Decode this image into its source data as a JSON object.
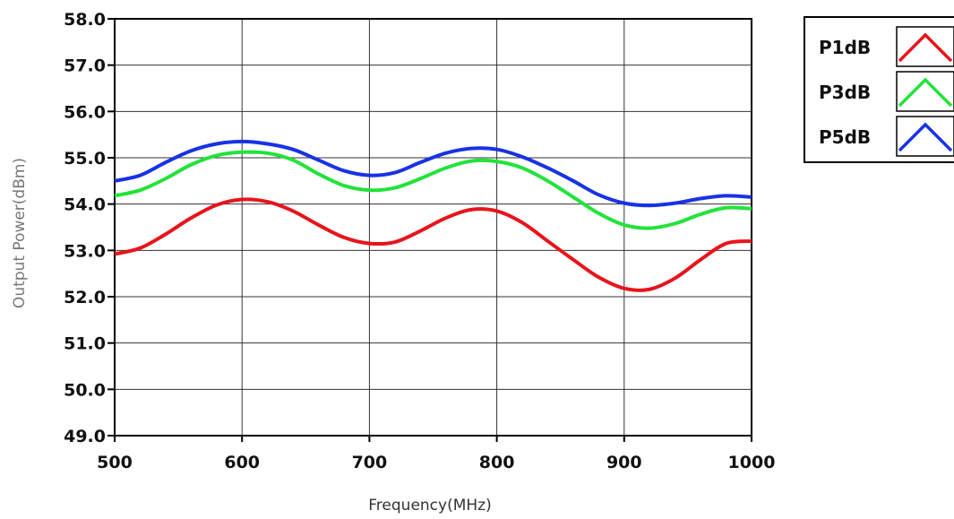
{
  "chart_data": {
    "type": "line",
    "title": "",
    "xlabel": "Frequency(MHz)",
    "ylabel": "Output Power(dBm)",
    "xlim": [
      500,
      1000
    ],
    "ylim": [
      49.0,
      58.0
    ],
    "x_ticks": [
      "500",
      "600",
      "700",
      "800",
      "900",
      "1000"
    ],
    "y_ticks": [
      "49.0",
      "50.0",
      "51.0",
      "52.0",
      "53.0",
      "54.0",
      "55.0",
      "56.0",
      "57.0",
      "58.0"
    ],
    "grid": true,
    "legend_position": "right",
    "series": [
      {
        "name": "P1dB",
        "color": "#e8141b",
        "x": [
          500,
          520,
          540,
          560,
          580,
          600,
          620,
          640,
          660,
          680,
          700,
          720,
          740,
          760,
          780,
          800,
          820,
          840,
          860,
          880,
          900,
          920,
          940,
          960,
          980,
          1000
        ],
        "y": [
          52.92,
          53.05,
          53.35,
          53.7,
          53.98,
          54.1,
          54.05,
          53.85,
          53.55,
          53.28,
          53.15,
          53.18,
          53.42,
          53.7,
          53.88,
          53.85,
          53.6,
          53.2,
          52.8,
          52.42,
          52.18,
          52.16,
          52.4,
          52.8,
          53.15,
          53.2
        ]
      },
      {
        "name": "P3dB",
        "color": "#22e33a",
        "x": [
          500,
          520,
          540,
          560,
          580,
          600,
          620,
          640,
          660,
          680,
          700,
          720,
          740,
          760,
          780,
          800,
          820,
          840,
          860,
          880,
          900,
          920,
          940,
          960,
          980,
          1000
        ],
        "y": [
          54.18,
          54.3,
          54.55,
          54.85,
          55.05,
          55.12,
          55.1,
          54.95,
          54.65,
          54.4,
          54.3,
          54.35,
          54.55,
          54.78,
          54.93,
          54.92,
          54.78,
          54.5,
          54.15,
          53.8,
          53.55,
          53.48,
          53.58,
          53.78,
          53.92,
          53.9
        ]
      },
      {
        "name": "P5dB",
        "color": "#1832e6",
        "x": [
          500,
          520,
          540,
          560,
          580,
          600,
          620,
          640,
          660,
          680,
          700,
          720,
          740,
          760,
          780,
          800,
          820,
          840,
          860,
          880,
          900,
          920,
          940,
          960,
          980,
          1000
        ],
        "y": [
          54.5,
          54.62,
          54.9,
          55.15,
          55.3,
          55.35,
          55.3,
          55.18,
          54.95,
          54.72,
          54.62,
          54.68,
          54.9,
          55.1,
          55.2,
          55.18,
          55.02,
          54.78,
          54.5,
          54.2,
          54.02,
          53.97,
          54.02,
          54.12,
          54.18,
          54.15
        ]
      }
    ]
  }
}
